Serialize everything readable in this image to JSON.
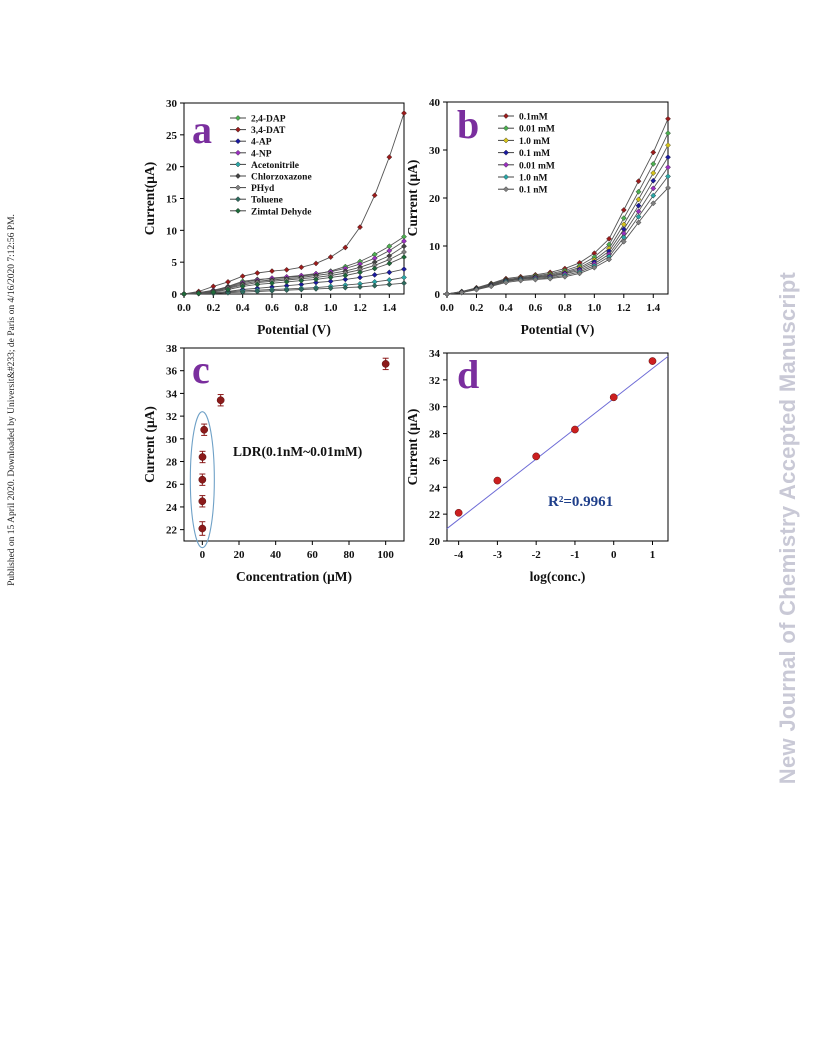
{
  "side_note": "Published on 15 April 2020. Downloaded by Universit&#233; de Paris on 4/16/2020 7:12:56 PM.",
  "watermark": "New Journal of Chemistry Accepted Manuscript",
  "chart_data": [
    {
      "panel": "a",
      "type": "line",
      "xlabel": "Potential (V)",
      "ylabel": "Current(μA)",
      "xlim": [
        0,
        1.5
      ],
      "ylim": [
        0,
        30
      ],
      "xticks": [
        "0.0",
        "0.2",
        "0.4",
        "0.6",
        "0.8",
        "1.0",
        "1.2",
        "1.4"
      ],
      "yticks": [
        "0",
        "5",
        "10",
        "15",
        "20",
        "25",
        "30"
      ],
      "x": [
        0,
        0.1,
        0.2,
        0.3,
        0.4,
        0.5,
        0.6,
        0.7,
        0.8,
        0.9,
        1.0,
        1.1,
        1.2,
        1.3,
        1.4,
        1.5
      ],
      "series": [
        {
          "name": "2,4-DAP",
          "color": "#4caf50",
          "values": [
            0,
            0.2,
            0.5,
            1.2,
            2.0,
            2.3,
            2.4,
            2.6,
            2.8,
            3.1,
            3.6,
            4.3,
            5.1,
            6.2,
            7.5,
            9.0
          ]
        },
        {
          "name": "3,4-DAT",
          "color": "#9b1c1c",
          "values": [
            0,
            0.4,
            1.2,
            1.9,
            2.8,
            3.3,
            3.6,
            3.8,
            4.2,
            4.8,
            5.8,
            7.3,
            10.5,
            15.5,
            21.5,
            28.4
          ]
        },
        {
          "name": "4-AP",
          "color": "#1a1aa0",
          "values": [
            0,
            0.1,
            0.2,
            0.4,
            0.7,
            0.9,
            1.1,
            1.3,
            1.5,
            1.8,
            2.0,
            2.3,
            2.6,
            3.0,
            3.4,
            3.9
          ]
        },
        {
          "name": "4-NP",
          "color": "#9b2fc0",
          "values": [
            0,
            0.2,
            0.6,
            1.1,
            1.8,
            2.2,
            2.5,
            2.7,
            2.9,
            3.2,
            3.5,
            4.0,
            4.7,
            5.6,
            6.8,
            8.3
          ]
        },
        {
          "name": "Acetonitrile",
          "color": "#2aa6a6",
          "values": [
            0,
            0.1,
            0.2,
            0.3,
            0.5,
            0.6,
            0.7,
            0.8,
            0.9,
            1.0,
            1.2,
            1.4,
            1.6,
            1.9,
            2.2,
            2.6
          ]
        },
        {
          "name": "Chlorzoxazone",
          "color": "#444444",
          "values": [
            0,
            0.2,
            0.5,
            1.0,
            1.6,
            2.0,
            2.2,
            2.4,
            2.6,
            2.9,
            3.2,
            3.6,
            4.2,
            5.0,
            6.0,
            7.5
          ]
        },
        {
          "name": "PHyd",
          "color": "#808080",
          "values": [
            0,
            0.2,
            0.4,
            0.9,
            1.4,
            1.8,
            2.0,
            2.2,
            2.4,
            2.6,
            2.9,
            3.3,
            3.8,
            4.5,
            5.4,
            6.6
          ]
        },
        {
          "name": "Toluene",
          "color": "#2e6b5e",
          "values": [
            0,
            0.05,
            0.1,
            0.2,
            0.3,
            0.4,
            0.5,
            0.6,
            0.7,
            0.8,
            0.9,
            1.0,
            1.1,
            1.3,
            1.5,
            1.7
          ]
        },
        {
          "name": "Zimtal Dehyde",
          "color": "#1e6b3a",
          "values": [
            0,
            0.1,
            0.3,
            0.7,
            1.2,
            1.5,
            1.7,
            1.9,
            2.1,
            2.3,
            2.6,
            2.9,
            3.4,
            4.0,
            4.8,
            5.8
          ]
        }
      ]
    },
    {
      "panel": "b",
      "type": "line",
      "xlabel": "Potential (V)",
      "ylabel": "Current (μA)",
      "xlim": [
        0,
        1.5
      ],
      "ylim": [
        0,
        40
      ],
      "xticks": [
        "0.0",
        "0.2",
        "0.4",
        "0.6",
        "0.8",
        "1.0",
        "1.2",
        "1.4"
      ],
      "yticks": [
        "0",
        "10",
        "20",
        "30",
        "40"
      ],
      "x": [
        0,
        0.1,
        0.2,
        0.3,
        0.4,
        0.5,
        0.6,
        0.7,
        0.8,
        0.9,
        1.0,
        1.1,
        1.2,
        1.3,
        1.4,
        1.5
      ],
      "series": [
        {
          "name": "0.1mM",
          "color": "#9b1c1c",
          "values": [
            0,
            0.5,
            1.3,
            2.2,
            3.2,
            3.6,
            4.0,
            4.5,
            5.3,
            6.5,
            8.5,
            11.5,
            17.5,
            23.5,
            29.5,
            36.5
          ]
        },
        {
          "name": "0.01 mM",
          "color": "#4caf50",
          "values": [
            0,
            0.5,
            1.2,
            2.1,
            3.0,
            3.4,
            3.8,
            4.2,
            4.9,
            5.9,
            7.7,
            10.3,
            15.8,
            21.3,
            27.1,
            33.5
          ]
        },
        {
          "name": "1.0 mM",
          "color": "#d4c21a",
          "values": [
            0,
            0.4,
            1.1,
            2.0,
            2.9,
            3.3,
            3.6,
            4.0,
            4.6,
            5.5,
            7.1,
            9.5,
            14.5,
            19.7,
            25.2,
            31.0
          ]
        },
        {
          "name": "0.1 mM",
          "color": "#1a1aa0",
          "values": [
            0,
            0.4,
            1.1,
            1.9,
            2.8,
            3.2,
            3.5,
            3.8,
            4.4,
            5.2,
            6.7,
            8.9,
            13.5,
            18.4,
            23.6,
            28.5
          ]
        },
        {
          "name": "0.01 mM",
          "color": "#9b2fc0",
          "values": [
            0,
            0.4,
            1.0,
            1.8,
            2.7,
            3.1,
            3.4,
            3.6,
            4.2,
            4.9,
            6.3,
            8.3,
            12.6,
            17.2,
            22.0,
            26.4
          ]
        },
        {
          "name": "1.0 nM",
          "color": "#2aa6a6",
          "values": [
            0,
            0.3,
            1.0,
            1.7,
            2.6,
            3.0,
            3.2,
            3.4,
            3.9,
            4.6,
            5.9,
            7.8,
            11.8,
            16.1,
            20.5,
            24.5
          ]
        },
        {
          "name": "0.1 nM",
          "color": "#808080",
          "values": [
            0,
            0.3,
            0.9,
            1.6,
            2.4,
            2.8,
            3.0,
            3.2,
            3.6,
            4.3,
            5.5,
            7.2,
            10.9,
            14.9,
            18.9,
            22.1
          ]
        }
      ]
    },
    {
      "panel": "c",
      "type": "scatter",
      "xlabel": "Concentration (μM)",
      "ylabel": "Current (μA)",
      "xlim": [
        -10,
        110
      ],
      "ylim": [
        21,
        38
      ],
      "xticks": [
        "0",
        "20",
        "40",
        "60",
        "80",
        "100"
      ],
      "yticks": [
        "22",
        "24",
        "26",
        "28",
        "30",
        "32",
        "34",
        "36",
        "38"
      ],
      "annotation": "LDR(0.1nM~0.01mM)",
      "points": [
        {
          "x": 0.0001,
          "y": 22.1,
          "err": 0.6
        },
        {
          "x": 0.001,
          "y": 24.5,
          "err": 0.5
        },
        {
          "x": 0.01,
          "y": 26.4,
          "err": 0.5
        },
        {
          "x": 0.1,
          "y": 28.4,
          "err": 0.5
        },
        {
          "x": 1,
          "y": 30.8,
          "err": 0.5
        },
        {
          "x": 10,
          "y": 33.4,
          "err": 0.5
        },
        {
          "x": 100,
          "y": 36.6,
          "err": 0.5
        }
      ],
      "point_color": "#8b1a1a"
    },
    {
      "panel": "d",
      "type": "scatter",
      "xlabel": "log(conc.)",
      "ylabel": "Current (μA)",
      "xlim": [
        -4.3,
        1.4
      ],
      "ylim": [
        20,
        34
      ],
      "xticks": [
        "-4",
        "-3",
        "-2",
        "-1",
        "0",
        "1"
      ],
      "yticks": [
        "20",
        "22",
        "24",
        "26",
        "28",
        "30",
        "32",
        "34"
      ],
      "annotation": "R²=0.9961",
      "points": [
        {
          "x": -4,
          "y": 22.1
        },
        {
          "x": -3,
          "y": 24.5
        },
        {
          "x": -2,
          "y": 26.3
        },
        {
          "x": -1,
          "y": 28.3
        },
        {
          "x": 0,
          "y": 30.7
        },
        {
          "x": 1,
          "y": 33.4
        }
      ],
      "fit": {
        "slope": 2.25,
        "intercept": 30.6
      },
      "point_color": "#cc1f1f",
      "line_color": "#6d6bd6"
    }
  ]
}
